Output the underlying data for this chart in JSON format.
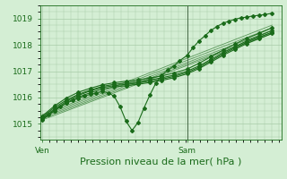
{
  "bg_color": "#d4eed4",
  "grid_color": "#a8cca8",
  "line_color": "#1a6b1a",
  "axis_label": "Pression niveau de la mer( hPa )",
  "xtick_labels": [
    "Ven",
    "Sam"
  ],
  "xtick_positions": [
    0.0,
    0.63
  ],
  "ylim": [
    1014.4,
    1019.5
  ],
  "yticks": [
    1015,
    1016,
    1017,
    1018,
    1019
  ],
  "xlabel_fontsize": 8,
  "tick_fontsize": 6.5,
  "line_lw": 0.8,
  "marker_size": 2.0,
  "vline_x": 0.63,
  "series": [
    {
      "x": [
        0.0,
        0.026,
        0.052,
        0.078,
        0.104,
        0.13,
        0.156,
        0.182,
        0.208,
        0.234,
        0.26,
        0.286,
        0.312,
        0.338,
        0.364,
        0.39,
        0.416,
        0.442,
        0.468,
        0.494,
        0.52,
        0.546,
        0.572,
        0.598,
        0.63,
        0.656,
        0.682,
        0.708,
        0.734,
        0.76,
        0.786,
        0.812,
        0.838,
        0.864,
        0.89,
        0.916,
        0.942,
        0.968,
        1.0
      ],
      "y": [
        1015.2,
        1015.35,
        1015.5,
        1015.65,
        1015.78,
        1015.88,
        1015.97,
        1016.05,
        1016.12,
        1016.18,
        1016.23,
        1016.18,
        1016.05,
        1015.65,
        1015.1,
        1014.75,
        1015.05,
        1015.6,
        1016.1,
        1016.55,
        1016.85,
        1017.05,
        1017.2,
        1017.4,
        1017.6,
        1017.9,
        1018.15,
        1018.35,
        1018.55,
        1018.7,
        1018.82,
        1018.9,
        1018.97,
        1019.03,
        1019.05,
        1019.1,
        1019.12,
        1019.15,
        1019.2
      ]
    },
    {
      "x": [
        0.0,
        0.052,
        0.104,
        0.156,
        0.208,
        0.26,
        0.312,
        0.364,
        0.416,
        0.468,
        0.52,
        0.572,
        0.63,
        0.682,
        0.734,
        0.786,
        0.838,
        0.89,
        0.942,
        1.0
      ],
      "y": [
        1015.2,
        1015.55,
        1015.85,
        1016.08,
        1016.25,
        1016.38,
        1016.45,
        1016.5,
        1016.55,
        1016.62,
        1016.7,
        1016.8,
        1016.95,
        1017.15,
        1017.4,
        1017.65,
        1017.88,
        1018.1,
        1018.28,
        1018.48
      ]
    },
    {
      "x": [
        0.0,
        0.052,
        0.104,
        0.156,
        0.208,
        0.26,
        0.312,
        0.364,
        0.416,
        0.468,
        0.52,
        0.572,
        0.63,
        0.682,
        0.734,
        0.786,
        0.838,
        0.89,
        0.942,
        1.0
      ],
      "y": [
        1015.25,
        1015.62,
        1015.9,
        1016.12,
        1016.28,
        1016.42,
        1016.5,
        1016.55,
        1016.6,
        1016.67,
        1016.75,
        1016.85,
        1017.0,
        1017.2,
        1017.45,
        1017.7,
        1017.93,
        1018.15,
        1018.33,
        1018.55
      ]
    },
    {
      "x": [
        0.0,
        0.052,
        0.104,
        0.156,
        0.208,
        0.26,
        0.312,
        0.364,
        0.416,
        0.468,
        0.52,
        0.572,
        0.63,
        0.682,
        0.734,
        0.786,
        0.838,
        0.89,
        0.942,
        1.0
      ],
      "y": [
        1015.3,
        1015.68,
        1015.98,
        1016.2,
        1016.35,
        1016.48,
        1016.56,
        1016.62,
        1016.67,
        1016.74,
        1016.82,
        1016.93,
        1017.08,
        1017.3,
        1017.55,
        1017.8,
        1018.03,
        1018.25,
        1018.43,
        1018.65
      ]
    },
    {
      "x": [
        0.0,
        0.052,
        0.104,
        0.156,
        0.208,
        0.26,
        0.312,
        0.364,
        0.416,
        0.468,
        0.52,
        0.572,
        0.63,
        0.682,
        0.734,
        0.786,
        0.838,
        0.89,
        0.942,
        1.0
      ],
      "y": [
        1015.15,
        1015.5,
        1015.8,
        1016.02,
        1016.18,
        1016.32,
        1016.4,
        1016.45,
        1016.5,
        1016.57,
        1016.65,
        1016.75,
        1016.9,
        1017.1,
        1017.35,
        1017.6,
        1017.83,
        1018.05,
        1018.23,
        1018.43
      ]
    }
  ],
  "trend_lines": [
    {
      "x": [
        0.0,
        1.0
      ],
      "y": [
        1015.2,
        1018.48
      ]
    },
    {
      "x": [
        0.0,
        1.0
      ],
      "y": [
        1015.25,
        1018.55
      ]
    },
    {
      "x": [
        0.0,
        1.0
      ],
      "y": [
        1015.3,
        1018.65
      ]
    },
    {
      "x": [
        0.0,
        1.0
      ],
      "y": [
        1015.15,
        1018.43
      ]
    },
    {
      "x": [
        0.0,
        1.0
      ],
      "y": [
        1015.35,
        1018.75
      ]
    }
  ]
}
